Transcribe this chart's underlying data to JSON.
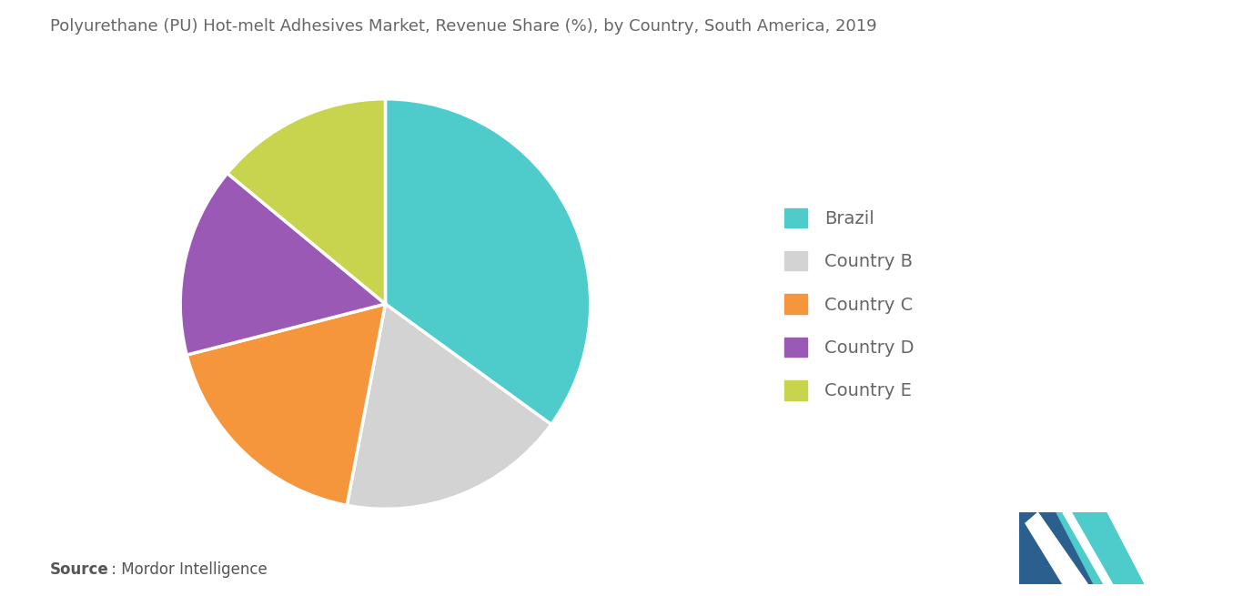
{
  "title": "Polyurethane (PU) Hot-melt Adhesives Market, Revenue Share (%), by Country, South America, 2019",
  "slices": [
    {
      "label": "Brazil",
      "value": 35,
      "color": "#4ECBCB"
    },
    {
      "label": "Country B",
      "value": 18,
      "color": "#D3D3D3"
    },
    {
      "label": "Country C",
      "value": 18,
      "color": "#F5963C"
    },
    {
      "label": "Country D",
      "value": 15,
      "color": "#9B59B6"
    },
    {
      "label": "Country E",
      "value": 14,
      "color": "#C8D44E"
    }
  ],
  "source_bold": "Source",
  "source_rest": " : Mordor Intelligence",
  "background_color": "#FFFFFF",
  "title_color": "#666666",
  "title_fontsize": 13,
  "legend_fontsize": 14,
  "source_fontsize": 12,
  "startangle": 90,
  "logo_teal": "#4ECBCB",
  "logo_navy": "#2B5F8E",
  "legend_text_color": "#666666"
}
